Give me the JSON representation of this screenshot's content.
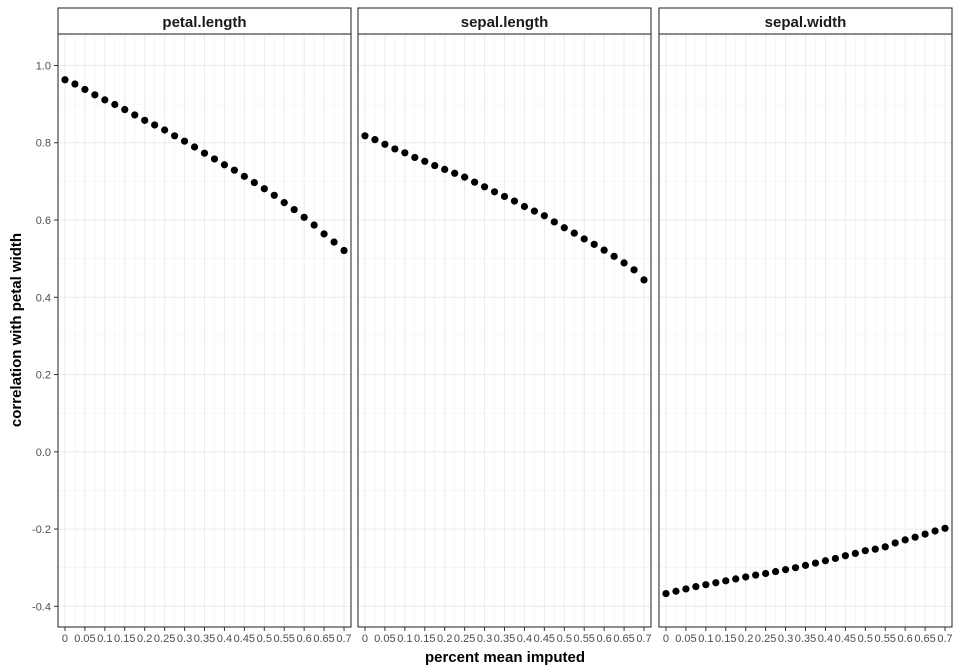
{
  "chart_data": {
    "type": "scatter",
    "xlabel": "percent mean imputed",
    "ylabel": "correlation with petal width",
    "x": [
      0,
      0.025,
      0.05,
      0.075,
      0.1,
      0.125,
      0.15,
      0.175,
      0.2,
      0.225,
      0.25,
      0.275,
      0.3,
      0.325,
      0.35,
      0.375,
      0.4,
      0.425,
      0.45,
      0.475,
      0.5,
      0.525,
      0.55,
      0.575,
      0.6,
      0.625,
      0.65,
      0.675,
      0.7
    ],
    "x_tick_labels": [
      "0",
      "0.05",
      "0.1",
      "0.15",
      "0.2",
      "0.25",
      "0.3",
      "0.35",
      "0.4",
      "0.45",
      "0.5",
      "0.55",
      "0.6",
      "0.65",
      "0.7"
    ],
    "x_tick_values": [
      0,
      0.05,
      0.1,
      0.15,
      0.2,
      0.25,
      0.3,
      0.35,
      0.4,
      0.45,
      0.5,
      0.55,
      0.6,
      0.65,
      0.7
    ],
    "y_tick_labels": [
      "-0.4",
      "-0.2",
      "0.0",
      "0.2",
      "0.4",
      "0.6",
      "0.8",
      "1.0"
    ],
    "y_tick_values": [
      -0.4,
      -0.2,
      0.0,
      0.2,
      0.4,
      0.6,
      0.8,
      1.0
    ],
    "xlim": [
      -0.0175,
      0.7175
    ],
    "ylim": [
      -0.4535,
      1.0815
    ],
    "grid": true,
    "point_color": "#000000",
    "panels": [
      {
        "name": "petal.length",
        "values": [
          0.963,
          0.952,
          0.938,
          0.924,
          0.911,
          0.899,
          0.886,
          0.872,
          0.858,
          0.846,
          0.833,
          0.818,
          0.804,
          0.789,
          0.773,
          0.758,
          0.743,
          0.729,
          0.713,
          0.697,
          0.681,
          0.664,
          0.645,
          0.627,
          0.607,
          0.587,
          0.564,
          0.543,
          0.521
        ]
      },
      {
        "name": "sepal.length",
        "values": [
          0.818,
          0.808,
          0.796,
          0.784,
          0.774,
          0.762,
          0.752,
          0.741,
          0.731,
          0.721,
          0.711,
          0.698,
          0.686,
          0.673,
          0.661,
          0.649,
          0.635,
          0.623,
          0.611,
          0.595,
          0.58,
          0.566,
          0.551,
          0.537,
          0.522,
          0.506,
          0.489,
          0.471,
          0.445
        ]
      },
      {
        "name": "sepal.width",
        "values": [
          -0.367,
          -0.361,
          -0.355,
          -0.349,
          -0.344,
          -0.339,
          -0.334,
          -0.329,
          -0.324,
          -0.319,
          -0.315,
          -0.31,
          -0.305,
          -0.3,
          -0.294,
          -0.288,
          -0.282,
          -0.276,
          -0.269,
          -0.263,
          -0.256,
          -0.252,
          -0.246,
          -0.236,
          -0.228,
          -0.221,
          -0.213,
          -0.205,
          -0.198
        ]
      }
    ]
  }
}
